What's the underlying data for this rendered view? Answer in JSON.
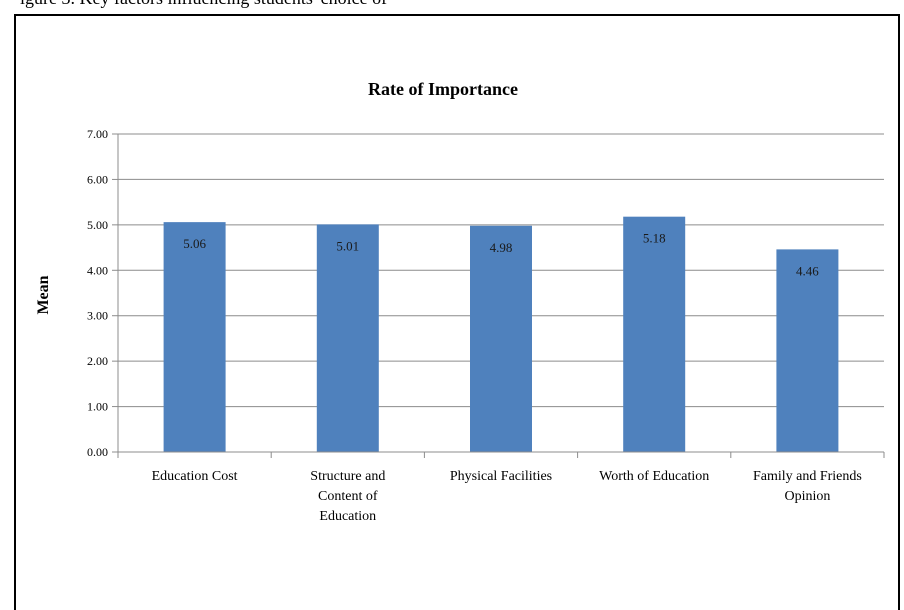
{
  "caption_fragment": "igure 3.  Key factors influencing students' choice of",
  "chart_data": {
    "type": "bar",
    "title": "Rate of Importance",
    "xlabel": "",
    "ylabel": "Mean",
    "ylim": [
      0,
      7
    ],
    "yticks": [
      "0.00",
      "1.00",
      "2.00",
      "3.00",
      "4.00",
      "5.00",
      "6.00",
      "7.00"
    ],
    "categories": [
      [
        "Education Cost"
      ],
      [
        "Structure and",
        "Content of",
        "Education"
      ],
      [
        "Physical Facilities"
      ],
      [
        "Worth of Education"
      ],
      [
        "Family and Friends",
        "Opinion"
      ]
    ],
    "values": [
      5.06,
      5.01,
      4.98,
      5.18,
      4.46
    ],
    "data_labels": [
      "5.06",
      "5.01",
      "4.98",
      "5.18",
      "4.46"
    ],
    "bar_color": "#4f81bd",
    "grid": true,
    "legend": "none"
  }
}
